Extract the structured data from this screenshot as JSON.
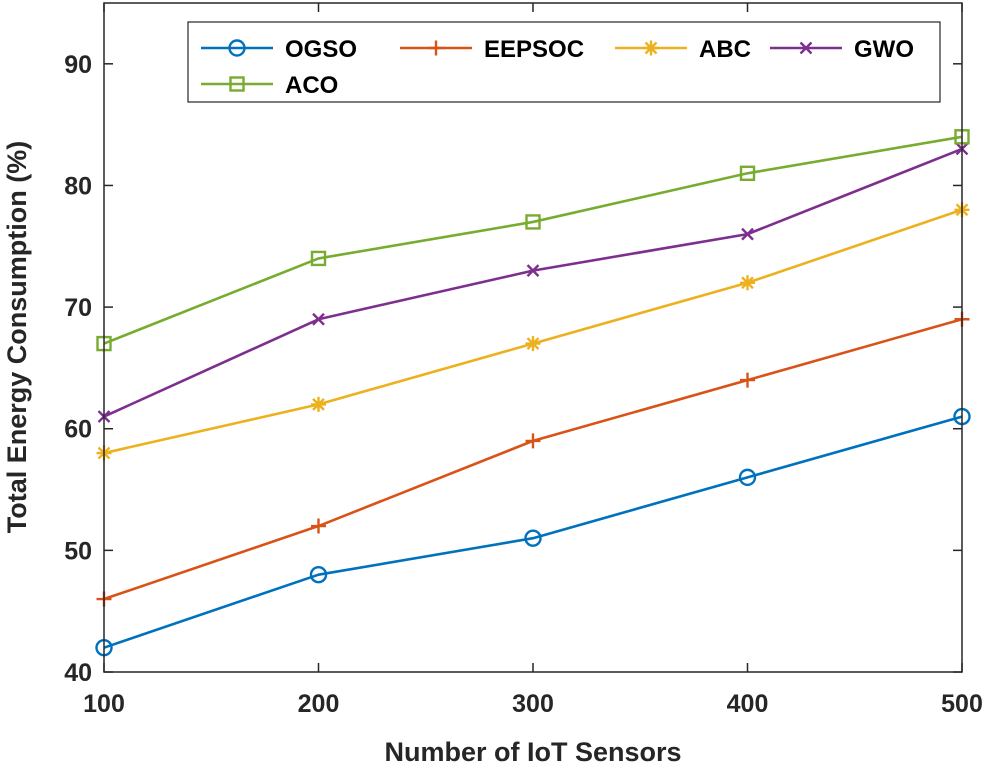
{
  "chart_data": {
    "type": "line",
    "title": "",
    "xlabel": "Number of IoT Sensors",
    "ylabel": "Total Energy Consumption (%)",
    "x": [
      100,
      200,
      300,
      400,
      500
    ],
    "xlim": [
      100,
      500
    ],
    "ylim": [
      40,
      95
    ],
    "xticks": [
      "100",
      "200",
      "300",
      "400",
      "500"
    ],
    "yticks": [
      "40",
      "50",
      "60",
      "70",
      "80",
      "90"
    ],
    "grid": false,
    "legend_position": "top",
    "series": [
      {
        "name": "OGSO",
        "marker": "circle",
        "color": "#0072BD",
        "values": [
          42,
          48,
          51,
          56,
          61
        ]
      },
      {
        "name": "EEPSOC",
        "marker": "plus",
        "color": "#D95319",
        "values": [
          46,
          52,
          59,
          64,
          69
        ]
      },
      {
        "name": "ABC",
        "marker": "asterisk",
        "color": "#EDB120",
        "values": [
          58,
          62,
          67,
          72,
          78
        ]
      },
      {
        "name": "GWO",
        "marker": "x",
        "color": "#7E2F8E",
        "values": [
          61,
          69,
          73,
          76,
          83
        ]
      },
      {
        "name": "ACO",
        "marker": "square",
        "color": "#77AC30",
        "values": [
          67,
          74,
          77,
          81,
          84
        ]
      }
    ]
  }
}
